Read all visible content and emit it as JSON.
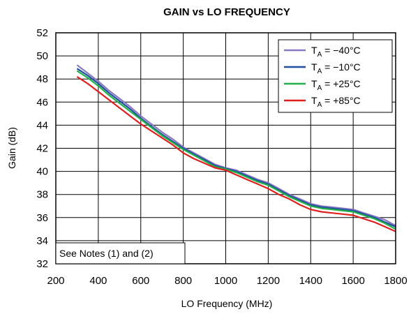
{
  "chart_data": {
    "type": "line",
    "title": "GAIN vs LO FREQUENCY",
    "xlabel": "LO Frequency (MHz)",
    "ylabel": "Gain (dB)",
    "xlim": [
      200,
      1800
    ],
    "ylim": [
      32,
      52
    ],
    "xticks": [
      200,
      400,
      600,
      800,
      1000,
      1200,
      1400,
      1600,
      1800
    ],
    "yticks": [
      32,
      34,
      36,
      38,
      40,
      42,
      44,
      46,
      48,
      50,
      52
    ],
    "grid": true,
    "legend_position": "top-right",
    "note": "See Notes (1) and (2)",
    "x": [
      300,
      350,
      400,
      450,
      500,
      550,
      600,
      650,
      700,
      750,
      800,
      850,
      900,
      950,
      1000,
      1050,
      1100,
      1150,
      1200,
      1250,
      1300,
      1350,
      1400,
      1450,
      1500,
      1550,
      1600,
      1650,
      1700,
      1750,
      1800
    ],
    "series": [
      {
        "label_prefix": "T",
        "label_sub": "A",
        "label_value": " = −40°C",
        "color": "#8a78c0",
        "values": [
          49.2,
          48.5,
          47.8,
          47.0,
          46.3,
          45.6,
          44.8,
          44.1,
          43.4,
          42.8,
          42.1,
          41.6,
          41.1,
          40.6,
          40.3,
          40.1,
          39.7,
          39.3,
          39.0,
          38.5,
          38.0,
          37.6,
          37.2,
          37.0,
          36.9,
          36.8,
          36.7,
          36.4,
          36.1,
          35.8,
          35.3
        ]
      },
      {
        "label_prefix": "T",
        "label_sub": "A",
        "label_value": " = −10°C",
        "color": "#1f4f9e",
        "values": [
          48.9,
          48.3,
          47.6,
          46.8,
          46.1,
          45.4,
          44.6,
          43.9,
          43.2,
          42.6,
          42.0,
          41.5,
          41.0,
          40.5,
          40.25,
          40.0,
          39.6,
          39.2,
          38.9,
          38.4,
          37.9,
          37.5,
          37.1,
          36.9,
          36.8,
          36.7,
          36.6,
          36.3,
          36.0,
          35.6,
          35.2
        ]
      },
      {
        "label_prefix": "T",
        "label_sub": "A",
        "label_value": " = +25°C",
        "color": "#22b04b",
        "values": [
          48.7,
          48.1,
          47.4,
          46.6,
          45.9,
          45.2,
          44.5,
          43.8,
          43.1,
          42.5,
          41.9,
          41.4,
          40.9,
          40.4,
          40.2,
          39.9,
          39.5,
          39.1,
          38.8,
          38.3,
          37.8,
          37.4,
          37.0,
          36.8,
          36.7,
          36.6,
          36.5,
          36.2,
          35.9,
          35.5,
          35.0
        ]
      },
      {
        "label_prefix": "T",
        "label_sub": "A",
        "label_value": " = +85°C",
        "color": "#e02020",
        "values": [
          48.2,
          47.6,
          46.9,
          46.2,
          45.5,
          44.8,
          44.1,
          43.5,
          42.9,
          42.3,
          41.6,
          41.1,
          40.7,
          40.3,
          40.1,
          39.7,
          39.3,
          38.9,
          38.5,
          38.0,
          37.6,
          37.1,
          36.7,
          36.5,
          36.4,
          36.3,
          36.2,
          35.9,
          35.6,
          35.2,
          34.8
        ]
      }
    ]
  }
}
